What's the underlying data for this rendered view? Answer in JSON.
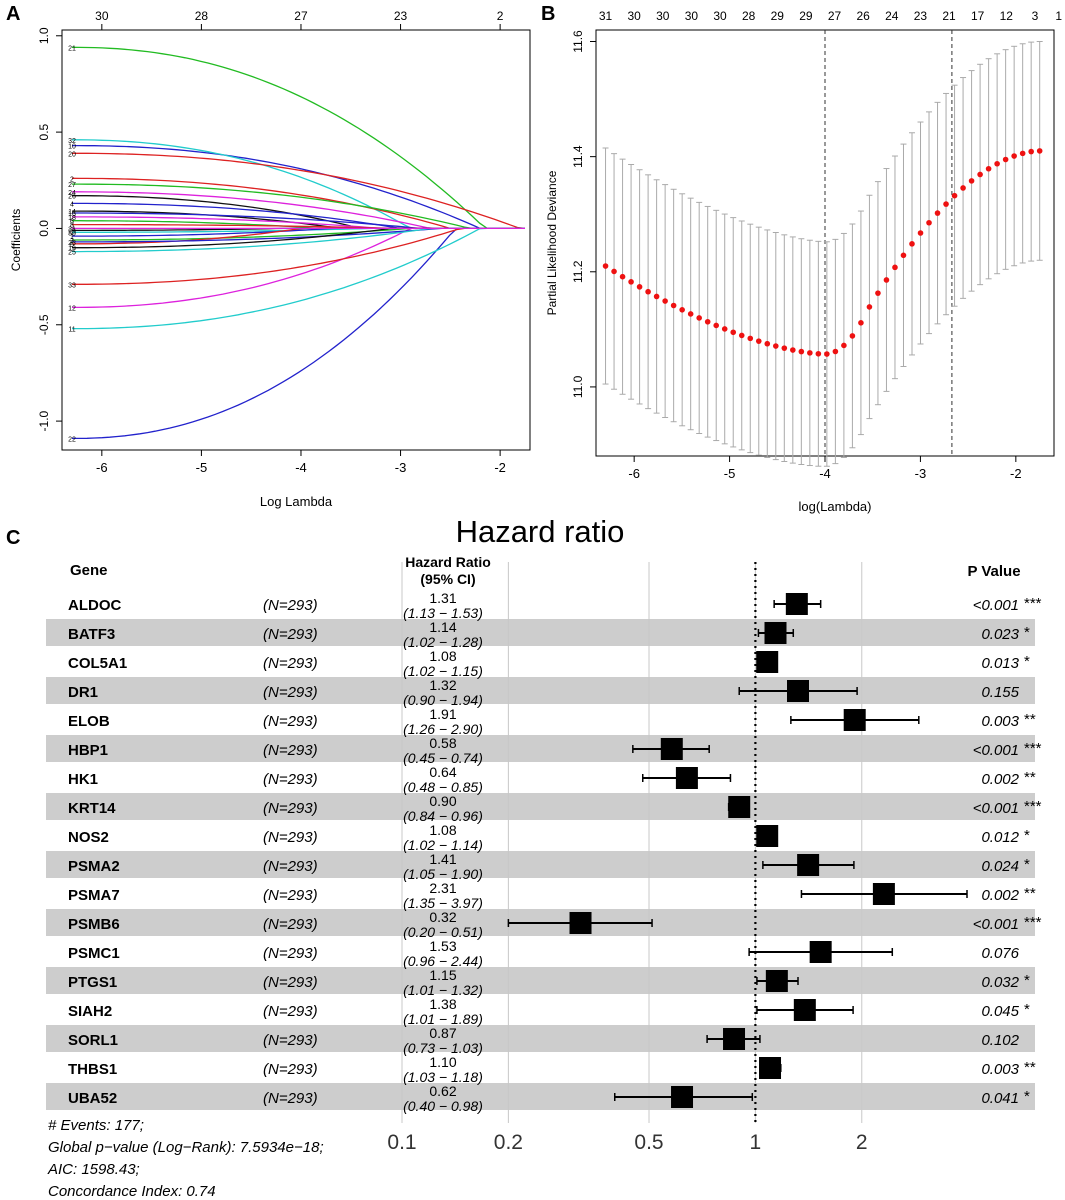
{
  "panel_labels": [
    "A",
    "B",
    "C"
  ],
  "chart_data": [
    {
      "type": "line",
      "panel": "A",
      "title": "",
      "xlabel": "Log Lambda",
      "ylabel": "Coefficients",
      "xlim": [
        -6.4,
        -1.7
      ],
      "ylim": [
        -1.15,
        1.03
      ],
      "x_ticks": [
        "-6",
        "-5",
        "-4",
        "-3",
        "-2"
      ],
      "x_tick_values": [
        -6,
        -5,
        -4,
        -3,
        -2
      ],
      "y_ticks": [
        "-1.0",
        "-0.5",
        "0.0",
        "0.5",
        "1.0"
      ],
      "y_tick_values": [
        -1.0,
        -0.5,
        0.0,
        0.5,
        1.0
      ],
      "top_axis_ticks": [
        "30",
        "28",
        "27",
        "23",
        "2"
      ],
      "top_axis_positions": [
        -6,
        -5,
        -4,
        -3,
        -2
      ],
      "lambda_end": -1.75,
      "series": [
        {
          "name": "21",
          "start": 0.94,
          "zero_at": -2.15,
          "color": "#22bb22"
        },
        {
          "name": "22",
          "start": -1.09,
          "zero_at": -2.45,
          "color": "#2222cc"
        },
        {
          "name": "11",
          "start": -0.52,
          "zero_at": -2.2,
          "color": "#22cccc"
        },
        {
          "name": "12",
          "start": -0.41,
          "zero_at": -2.9,
          "color": "#dd22dd"
        },
        {
          "name": "33",
          "start": -0.29,
          "zero_at": -2.4,
          "color": "#dd2222"
        },
        {
          "name": "10",
          "start": 0.43,
          "zero_at": -2.2,
          "color": "#2222cc"
        },
        {
          "name": "32",
          "start": 0.46,
          "zero_at": -2.9,
          "color": "#22cccc"
        },
        {
          "name": "20",
          "start": 0.39,
          "zero_at": -1.8,
          "color": "#dd2222"
        },
        {
          "name": "2",
          "start": 0.26,
          "zero_at": -2.5,
          "color": "#dd2222"
        },
        {
          "name": "27",
          "start": 0.23,
          "zero_at": -2.3,
          "color": "#22bb22"
        },
        {
          "name": "24",
          "start": 0.19,
          "zero_at": -2.7,
          "color": "#dd22dd"
        },
        {
          "name": "26",
          "start": 0.17,
          "zero_at": -3.4,
          "color": "#111111"
        },
        {
          "name": "4",
          "start": 0.13,
          "zero_at": -3.0,
          "color": "#2222cc"
        },
        {
          "name": "14",
          "start": 0.09,
          "zero_at": -3.6,
          "color": "#111111"
        },
        {
          "name": "16",
          "start": 0.08,
          "zero_at": -2.8,
          "color": "#2222cc"
        },
        {
          "name": "18",
          "start": 0.06,
          "zero_at": -3.2,
          "color": "#dd22dd"
        },
        {
          "name": "6",
          "start": 0.04,
          "zero_at": -3.8,
          "color": "#22bb22"
        },
        {
          "name": "8",
          "start": 0.02,
          "zero_at": -3.0,
          "color": "#dd2222"
        },
        {
          "name": "29",
          "start": -0.01,
          "zero_at": -4.2,
          "color": "#111111"
        },
        {
          "name": "30",
          "start": -0.02,
          "zero_at": -3.3,
          "color": "#22cccc"
        },
        {
          "name": "1",
          "start": -0.04,
          "zero_at": -3.7,
          "color": "#2222cc"
        },
        {
          "name": "3",
          "start": -0.06,
          "zero_at": -2.9,
          "color": "#22bb22"
        },
        {
          "name": "5",
          "start": -0.08,
          "zero_at": -4.0,
          "color": "#dd2222"
        },
        {
          "name": "23",
          "start": -0.07,
          "zero_at": -2.6,
          "color": "#2222cc"
        },
        {
          "name": "19",
          "start": -0.1,
          "zero_at": -3.1,
          "color": "#111111"
        },
        {
          "name": "25",
          "start": -0.12,
          "zero_at": -2.7,
          "color": "#22cccc"
        },
        {
          "name": "31",
          "start": 0.0,
          "zero_at": -4.4,
          "color": "#dd22dd"
        }
      ],
      "right_labels_note": "coefficient paths shrink to zero as Log Lambda increases"
    },
    {
      "type": "scatter",
      "panel": "B",
      "title": "",
      "xlabel": "log(Lambda)",
      "ylabel": "Partial Likelihood Deviance",
      "xlim": [
        -6.4,
        -1.6
      ],
      "ylim": [
        10.88,
        11.62
      ],
      "x_ticks": [
        "-6",
        "-5",
        "-4",
        "-3",
        "-2"
      ],
      "x_tick_values": [
        -6,
        -5,
        -4,
        -3,
        -2
      ],
      "y_ticks": [
        "11.0",
        "11.2",
        "11.4",
        "11.6"
      ],
      "y_tick_values": [
        11.0,
        11.2,
        11.4,
        11.6
      ],
      "top_axis_ticks": [
        "31",
        "30",
        "30",
        "30",
        "30",
        "28",
        "29",
        "29",
        "27",
        "26",
        "24",
        "23",
        "21",
        "17",
        "12",
        "3",
        "1"
      ],
      "top_axis_positions": [
        -6.3,
        -6.0,
        -5.7,
        -5.4,
        -5.1,
        -4.8,
        -4.5,
        -4.2,
        -3.9,
        -3.6,
        -3.3,
        -3.0,
        -2.7,
        -2.4,
        -2.1,
        -1.8,
        -1.55
      ],
      "lambda_min": -4.0,
      "lambda_1se": -2.67,
      "points": {
        "x_start": -6.3,
        "x_end": -1.75,
        "n": 52,
        "mean_start": 11.21,
        "mean_min": 11.057,
        "mean_end": 11.41,
        "ci_half_start": 0.205,
        "ci_half_min": 0.195,
        "ci_half_end": 0.19
      },
      "point_color": "#ee1111",
      "errorbar_color": "#aaaaaa"
    },
    {
      "type": "table",
      "panel": "C",
      "title": "Hazard ratio",
      "headers": {
        "gene": "Gene",
        "hr": "Hazard Ratio",
        "ci": "(95% CI)",
        "p": "P Value"
      },
      "x_ticks": [
        "0.1",
        "0.2",
        "0.5",
        "1",
        "2"
      ],
      "x_tick_values": [
        0.1,
        0.2,
        0.5,
        1,
        2
      ],
      "x_scale": "log",
      "xlim": [
        0.1,
        3.97
      ],
      "reference_line": 1,
      "rows": [
        {
          "gene": "ALDOC",
          "n": "(N=293)",
          "hr": "1.31",
          "ci": "(1.13 − 1.53)",
          "hr_v": 1.31,
          "lo": 1.13,
          "hi": 1.53,
          "p": "<0.001",
          "sig": "***"
        },
        {
          "gene": "BATF3",
          "n": "(N=293)",
          "hr": "1.14",
          "ci": "(1.02 − 1.28)",
          "hr_v": 1.14,
          "lo": 1.02,
          "hi": 1.28,
          "p": "0.023",
          "sig": "*"
        },
        {
          "gene": "COL5A1",
          "n": "(N=293)",
          "hr": "1.08",
          "ci": "(1.02 − 1.15)",
          "hr_v": 1.08,
          "lo": 1.02,
          "hi": 1.15,
          "p": "0.013",
          "sig": "*"
        },
        {
          "gene": "DR1",
          "n": "(N=293)",
          "hr": "1.32",
          "ci": "(0.90 − 1.94)",
          "hr_v": 1.32,
          "lo": 0.9,
          "hi": 1.94,
          "p": "0.155",
          "sig": ""
        },
        {
          "gene": "ELOB",
          "n": "(N=293)",
          "hr": "1.91",
          "ci": "(1.26 − 2.90)",
          "hr_v": 1.91,
          "lo": 1.26,
          "hi": 2.9,
          "p": "0.003",
          "sig": "**"
        },
        {
          "gene": "HBP1",
          "n": "(N=293)",
          "hr": "0.58",
          "ci": "(0.45 − 0.74)",
          "hr_v": 0.58,
          "lo": 0.45,
          "hi": 0.74,
          "p": "<0.001",
          "sig": "***"
        },
        {
          "gene": "HK1",
          "n": "(N=293)",
          "hr": "0.64",
          "ci": "(0.48 − 0.85)",
          "hr_v": 0.64,
          "lo": 0.48,
          "hi": 0.85,
          "p": "0.002",
          "sig": "**"
        },
        {
          "gene": "KRT14",
          "n": "(N=293)",
          "hr": "0.90",
          "ci": "(0.84 − 0.96)",
          "hr_v": 0.9,
          "lo": 0.84,
          "hi": 0.96,
          "p": "<0.001",
          "sig": "***"
        },
        {
          "gene": "NOS2",
          "n": "(N=293)",
          "hr": "1.08",
          "ci": "(1.02 − 1.14)",
          "hr_v": 1.08,
          "lo": 1.02,
          "hi": 1.14,
          "p": "0.012",
          "sig": "*"
        },
        {
          "gene": "PSMA2",
          "n": "(N=293)",
          "hr": "1.41",
          "ci": "(1.05 − 1.90)",
          "hr_v": 1.41,
          "lo": 1.05,
          "hi": 1.9,
          "p": "0.024",
          "sig": "*"
        },
        {
          "gene": "PSMA7",
          "n": "(N=293)",
          "hr": "2.31",
          "ci": "(1.35 − 3.97)",
          "hr_v": 2.31,
          "lo": 1.35,
          "hi": 3.97,
          "p": "0.002",
          "sig": "**"
        },
        {
          "gene": "PSMB6",
          "n": "(N=293)",
          "hr": "0.32",
          "ci": "(0.20 − 0.51)",
          "hr_v": 0.32,
          "lo": 0.2,
          "hi": 0.51,
          "p": "<0.001",
          "sig": "***"
        },
        {
          "gene": "PSMC1",
          "n": "(N=293)",
          "hr": "1.53",
          "ci": "(0.96 − 2.44)",
          "hr_v": 1.53,
          "lo": 0.96,
          "hi": 2.44,
          "p": "0.076",
          "sig": ""
        },
        {
          "gene": "PTGS1",
          "n": "(N=293)",
          "hr": "1.15",
          "ci": "(1.01 − 1.32)",
          "hr_v": 1.15,
          "lo": 1.01,
          "hi": 1.32,
          "p": "0.032",
          "sig": "*"
        },
        {
          "gene": "SIAH2",
          "n": "(N=293)",
          "hr": "1.38",
          "ci": "(1.01 − 1.89)",
          "hr_v": 1.38,
          "lo": 1.01,
          "hi": 1.89,
          "p": "0.045",
          "sig": "*"
        },
        {
          "gene": "SORL1",
          "n": "(N=293)",
          "hr": "0.87",
          "ci": "(0.73 − 1.03)",
          "hr_v": 0.87,
          "lo": 0.73,
          "hi": 1.03,
          "p": "0.102",
          "sig": ""
        },
        {
          "gene": "THBS1",
          "n": "(N=293)",
          "hr": "1.10",
          "ci": "(1.03 − 1.18)",
          "hr_v": 1.1,
          "lo": 1.03,
          "hi": 1.18,
          "p": "0.003",
          "sig": "**"
        },
        {
          "gene": "UBA52",
          "n": "(N=293)",
          "hr": "0.62",
          "ci": "(0.40 − 0.98)",
          "hr_v": 0.62,
          "lo": 0.4,
          "hi": 0.98,
          "p": "0.041",
          "sig": "*"
        }
      ],
      "footer": [
        "# Events: 177;",
        "Global p−value (Log−Rank): 7.5934e−18;",
        "AIC: 1598.43;",
        "Concordance Index: 0.74"
      ]
    }
  ]
}
